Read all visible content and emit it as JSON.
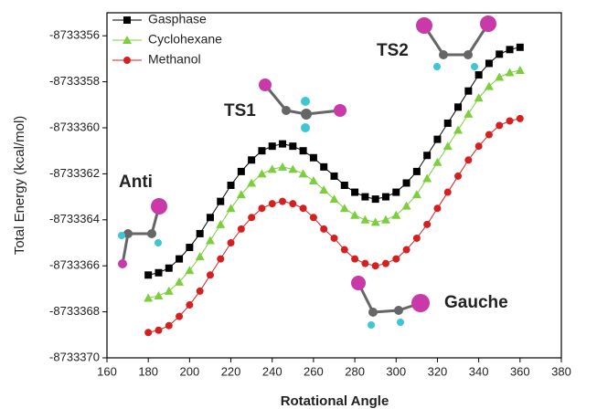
{
  "chart_data": {
    "type": "line",
    "xlabel": "Rotational Angle",
    "ylabel": "Total Energy (kcal/mol)",
    "x": [
      180,
      185,
      190,
      195,
      200,
      205,
      210,
      215,
      220,
      225,
      230,
      235,
      240,
      245,
      250,
      255,
      260,
      265,
      270,
      275,
      280,
      285,
      290,
      295,
      300,
      305,
      310,
      315,
      320,
      325,
      330,
      335,
      340,
      345,
      350,
      355,
      360
    ],
    "series": [
      {
        "name": "Gasphase",
        "color": "#000000",
        "marker": "square",
        "values": [
          -8733366.4,
          -8733366.3,
          -8733366.1,
          -8733365.7,
          -8733365.2,
          -8733364.6,
          -8733363.9,
          -8733363.2,
          -8733362.5,
          -8733361.9,
          -8733361.4,
          -8733361.0,
          -8733360.8,
          -8733360.7,
          -8733360.8,
          -8733361.0,
          -8733361.3,
          -8733361.7,
          -8733362.1,
          -8733362.5,
          -8733362.8,
          -8733363.0,
          -8733363.1,
          -8733363.0,
          -8733362.8,
          -8733362.4,
          -8733361.9,
          -8733361.2,
          -8733360.5,
          -8733359.8,
          -8733359.1,
          -8733358.4,
          -8733357.7,
          -8733357.2,
          -8733356.8,
          -8733356.6,
          -8733356.5
        ]
      },
      {
        "name": "Cyclohexane",
        "color": "#7ccf3c",
        "marker": "triangle",
        "values": [
          -8733367.4,
          -8733367.3,
          -8733367.1,
          -8733366.7,
          -8733366.2,
          -8733365.6,
          -8733364.9,
          -8733364.2,
          -8733363.5,
          -8733362.9,
          -8733362.4,
          -8733362.0,
          -8733361.8,
          -8733361.7,
          -8733361.8,
          -8733362.0,
          -8733362.3,
          -8733362.7,
          -8733363.1,
          -8733363.5,
          -8733363.8,
          -8733364.0,
          -8733364.1,
          -8733364.0,
          -8733363.8,
          -8733363.4,
          -8733362.9,
          -8733362.2,
          -8733361.5,
          -8733360.8,
          -8733360.1,
          -8733359.4,
          -8733358.7,
          -8733358.2,
          -8733357.8,
          -8733357.6,
          -8733357.5
        ]
      },
      {
        "name": "Methanol",
        "color": "#d62020",
        "marker": "circle",
        "values": [
          -8733368.9,
          -8733368.8,
          -8733368.6,
          -8733368.2,
          -8733367.7,
          -8733367.1,
          -8733366.4,
          -8733365.7,
          -8733365.0,
          -8733364.4,
          -8733363.9,
          -8733363.5,
          -8733363.3,
          -8733363.2,
          -8733363.3,
          -8733363.5,
          -8733363.9,
          -8733364.4,
          -8733364.8,
          -8733365.3,
          -8733365.7,
          -8733365.9,
          -8733366.0,
          -8733365.9,
          -8733365.7,
          -8733365.3,
          -8733364.8,
          -8733364.2,
          -8733363.5,
          -8733362.8,
          -8733362.1,
          -8733361.4,
          -8733360.8,
          -8733360.3,
          -8733359.9,
          -8733359.7,
          -8733359.6
        ]
      }
    ],
    "xlim": [
      160,
      380
    ],
    "xticks": [
      160,
      180,
      200,
      220,
      240,
      260,
      280,
      300,
      320,
      340,
      360,
      380
    ],
    "ylim": [
      -8733370,
      -8733355
    ],
    "yticks": [
      -8733356,
      -8733358,
      -8733360,
      -8733362,
      -8733364,
      -8733366,
      -8733368,
      -8733370
    ],
    "legend": "upper left",
    "annotations": [
      "Anti",
      "TS1",
      "TS2",
      "Gauche"
    ]
  }
}
